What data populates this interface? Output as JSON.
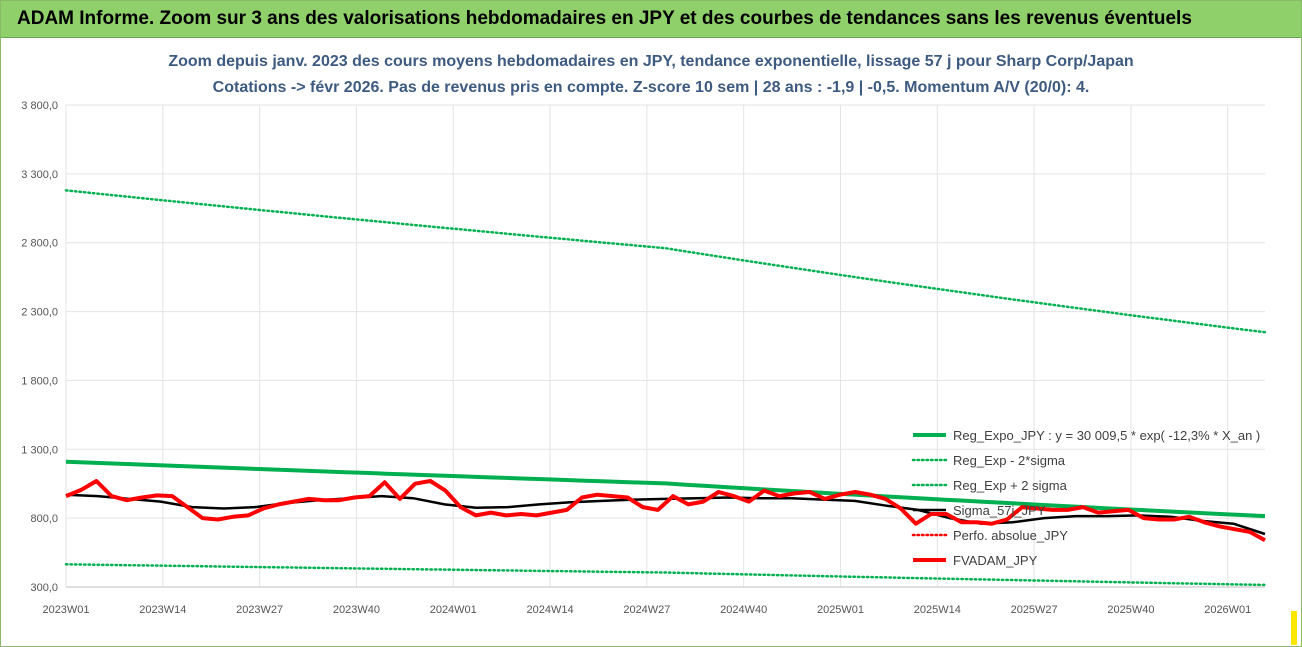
{
  "banner": {
    "title": "ADAM Informe. Zoom sur 3 ans des valorisations hebdomadaires en JPY et des courbes de tendances sans les revenus éventuels"
  },
  "chart_data": {
    "type": "line",
    "title": "Zoom depuis janv. 2023 des cours moyens hebdomadaires en JPY, tendance exponentielle, lissage 57 j pour Sharp Corp/Japan",
    "subtitle": "Cotations -> févr 2026.  Pas de revenus pris en compte. Z-score 10 sem | 28 ans : -1,9 | -0,5. Momentum A/V (20/0): 4.",
    "ylim": [
      300,
      3800
    ],
    "yticks": [
      "3 800,0",
      "3 300,0",
      "2 800,0",
      "2 300,0",
      "1 800,0",
      "1 300,0",
      "800,0",
      "300,0"
    ],
    "ytick_values": [
      3800,
      3300,
      2800,
      2300,
      1800,
      1300,
      800,
      300
    ],
    "xticks": [
      "2023W01",
      "2023W14",
      "2023W27",
      "2023W40",
      "2024W01",
      "2024W14",
      "2024W27",
      "2024W40",
      "2025W01",
      "2025W14",
      "2025W27",
      "2025W40",
      "2026W01"
    ],
    "xtick_index": [
      0,
      13,
      26,
      39,
      52,
      65,
      78,
      91,
      104,
      117,
      130,
      143,
      156
    ],
    "n_weeks": 162,
    "grid": true,
    "legend_position": "right",
    "series": [
      {
        "name": "Reg_Expo_JPY : y = 30 009,5 * exp( -12,3% *  X_an )",
        "color": "#00b050",
        "style": "solid-thick",
        "values": [
          1210,
          1052,
          815
        ]
      },
      {
        "name": "Reg_Exp - 2*sigma",
        "color": "#00b050",
        "style": "dotted",
        "values": [
          465,
          405,
          315
        ]
      },
      {
        "name": "Reg_Exp + 2 sigma",
        "color": "#00b050",
        "style": "dotted",
        "values": [
          3180,
          2760,
          2150
        ]
      },
      {
        "name": "Sigma_57j_JPY",
        "color": "#000000",
        "style": "solid",
        "values": [
          970,
          960,
          940,
          920,
          880,
          870,
          880,
          910,
          930,
          945,
          960,
          945,
          900,
          875,
          880,
          900,
          915,
          925,
          935,
          940,
          945,
          950,
          945,
          945,
          935,
          925,
          890,
          860,
          800,
          760,
          770,
          800,
          815,
          815,
          820,
          810,
          780,
          760,
          685
        ]
      },
      {
        "name": "Perfo. absolue_JPY",
        "color": "#ff0000",
        "style": "dotted",
        "values": []
      },
      {
        "name": "FVADAM_JPY",
        "color": "#ff0000",
        "style": "solid-thick",
        "values": [
          960,
          1005,
          1070,
          960,
          930,
          950,
          965,
          960,
          880,
          800,
          790,
          810,
          820,
          870,
          900,
          920,
          940,
          930,
          930,
          950,
          960,
          1060,
          940,
          1050,
          1070,
          1000,
          880,
          820,
          840,
          820,
          830,
          820,
          840,
          860,
          950,
          970,
          960,
          950,
          880,
          860,
          960,
          900,
          920,
          990,
          960,
          920,
          1000,
          960,
          980,
          990,
          940,
          970,
          990,
          970,
          940,
          870,
          760,
          830,
          830,
          770,
          770,
          760,
          790,
          880,
          870,
          860,
          860,
          880,
          840,
          850,
          860,
          800,
          790,
          790,
          810,
          770,
          740,
          720,
          700,
          640
        ]
      }
    ]
  }
}
